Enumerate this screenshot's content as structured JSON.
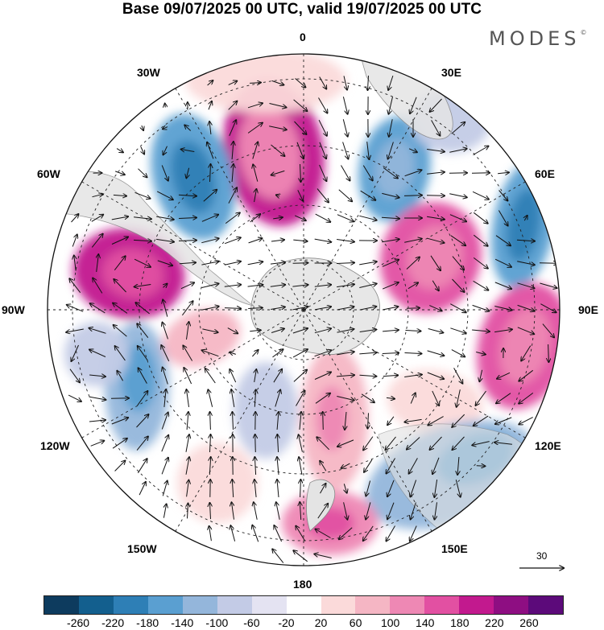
{
  "title": "Base 09/07/2025 00 UTC, valid 19/07/2025 00 UTC",
  "logo": {
    "text": "MODES",
    "mark": "©"
  },
  "longitude_labels": {
    "lon_0": "0",
    "lon_30e": "30E",
    "lon_60e": "60E",
    "lon_90e": "90E",
    "lon_120e": "120E",
    "lon_150e": "150E",
    "lon_180": "180",
    "lon_150w": "150W",
    "lon_120w": "120W",
    "lon_90w": "90W",
    "lon_60w": "60W",
    "lon_30w": "30W"
  },
  "reference_vector": {
    "value": "30"
  },
  "colorbar": {
    "colors": [
      "#0d3b5e",
      "#135f8e",
      "#2e7fb6",
      "#5a9fd1",
      "#94b6db",
      "#c3cbe6",
      "#e4e3f2",
      "#ffffff",
      "#fbdada",
      "#f5b6c4",
      "#ee88b4",
      "#e250a2",
      "#c2198e",
      "#8e0e82",
      "#5c0a7a"
    ],
    "ticks": [
      "-260",
      "-220",
      "-180",
      "-140",
      "-100",
      "-60",
      "-20",
      "20",
      "60",
      "100",
      "140",
      "180",
      "220",
      "260"
    ]
  },
  "chart_data": {
    "type": "heatmap",
    "projection": "south-polar-stereographic",
    "field": "height anomaly with wind vectors",
    "scale": {
      "min": -260,
      "max": 260,
      "step": 40
    },
    "anomaly_centers": [
      {
        "lon": "10W",
        "sign": "positive",
        "approx_value": 200
      },
      {
        "lon": "30E",
        "sign": "negative",
        "approx_value": -140
      },
      {
        "lon": "55E",
        "sign": "positive",
        "approx_value": 180
      },
      {
        "lon": "70E",
        "sign": "negative",
        "approx_value": -140
      },
      {
        "lon": "100E",
        "sign": "positive",
        "approx_value": 180
      },
      {
        "lon": "130E",
        "sign": "negative",
        "approx_value": -120
      },
      {
        "lon": "170E",
        "sign": "positive",
        "approx_value": 140
      },
      {
        "lon": "45W",
        "sign": "negative",
        "approx_value": -180
      },
      {
        "lon": "80W",
        "sign": "positive",
        "approx_value": 220
      },
      {
        "lon": "110W",
        "sign": "negative",
        "approx_value": -100
      },
      {
        "lon": "160W",
        "sign": "positive",
        "approx_value": 80
      }
    ]
  }
}
